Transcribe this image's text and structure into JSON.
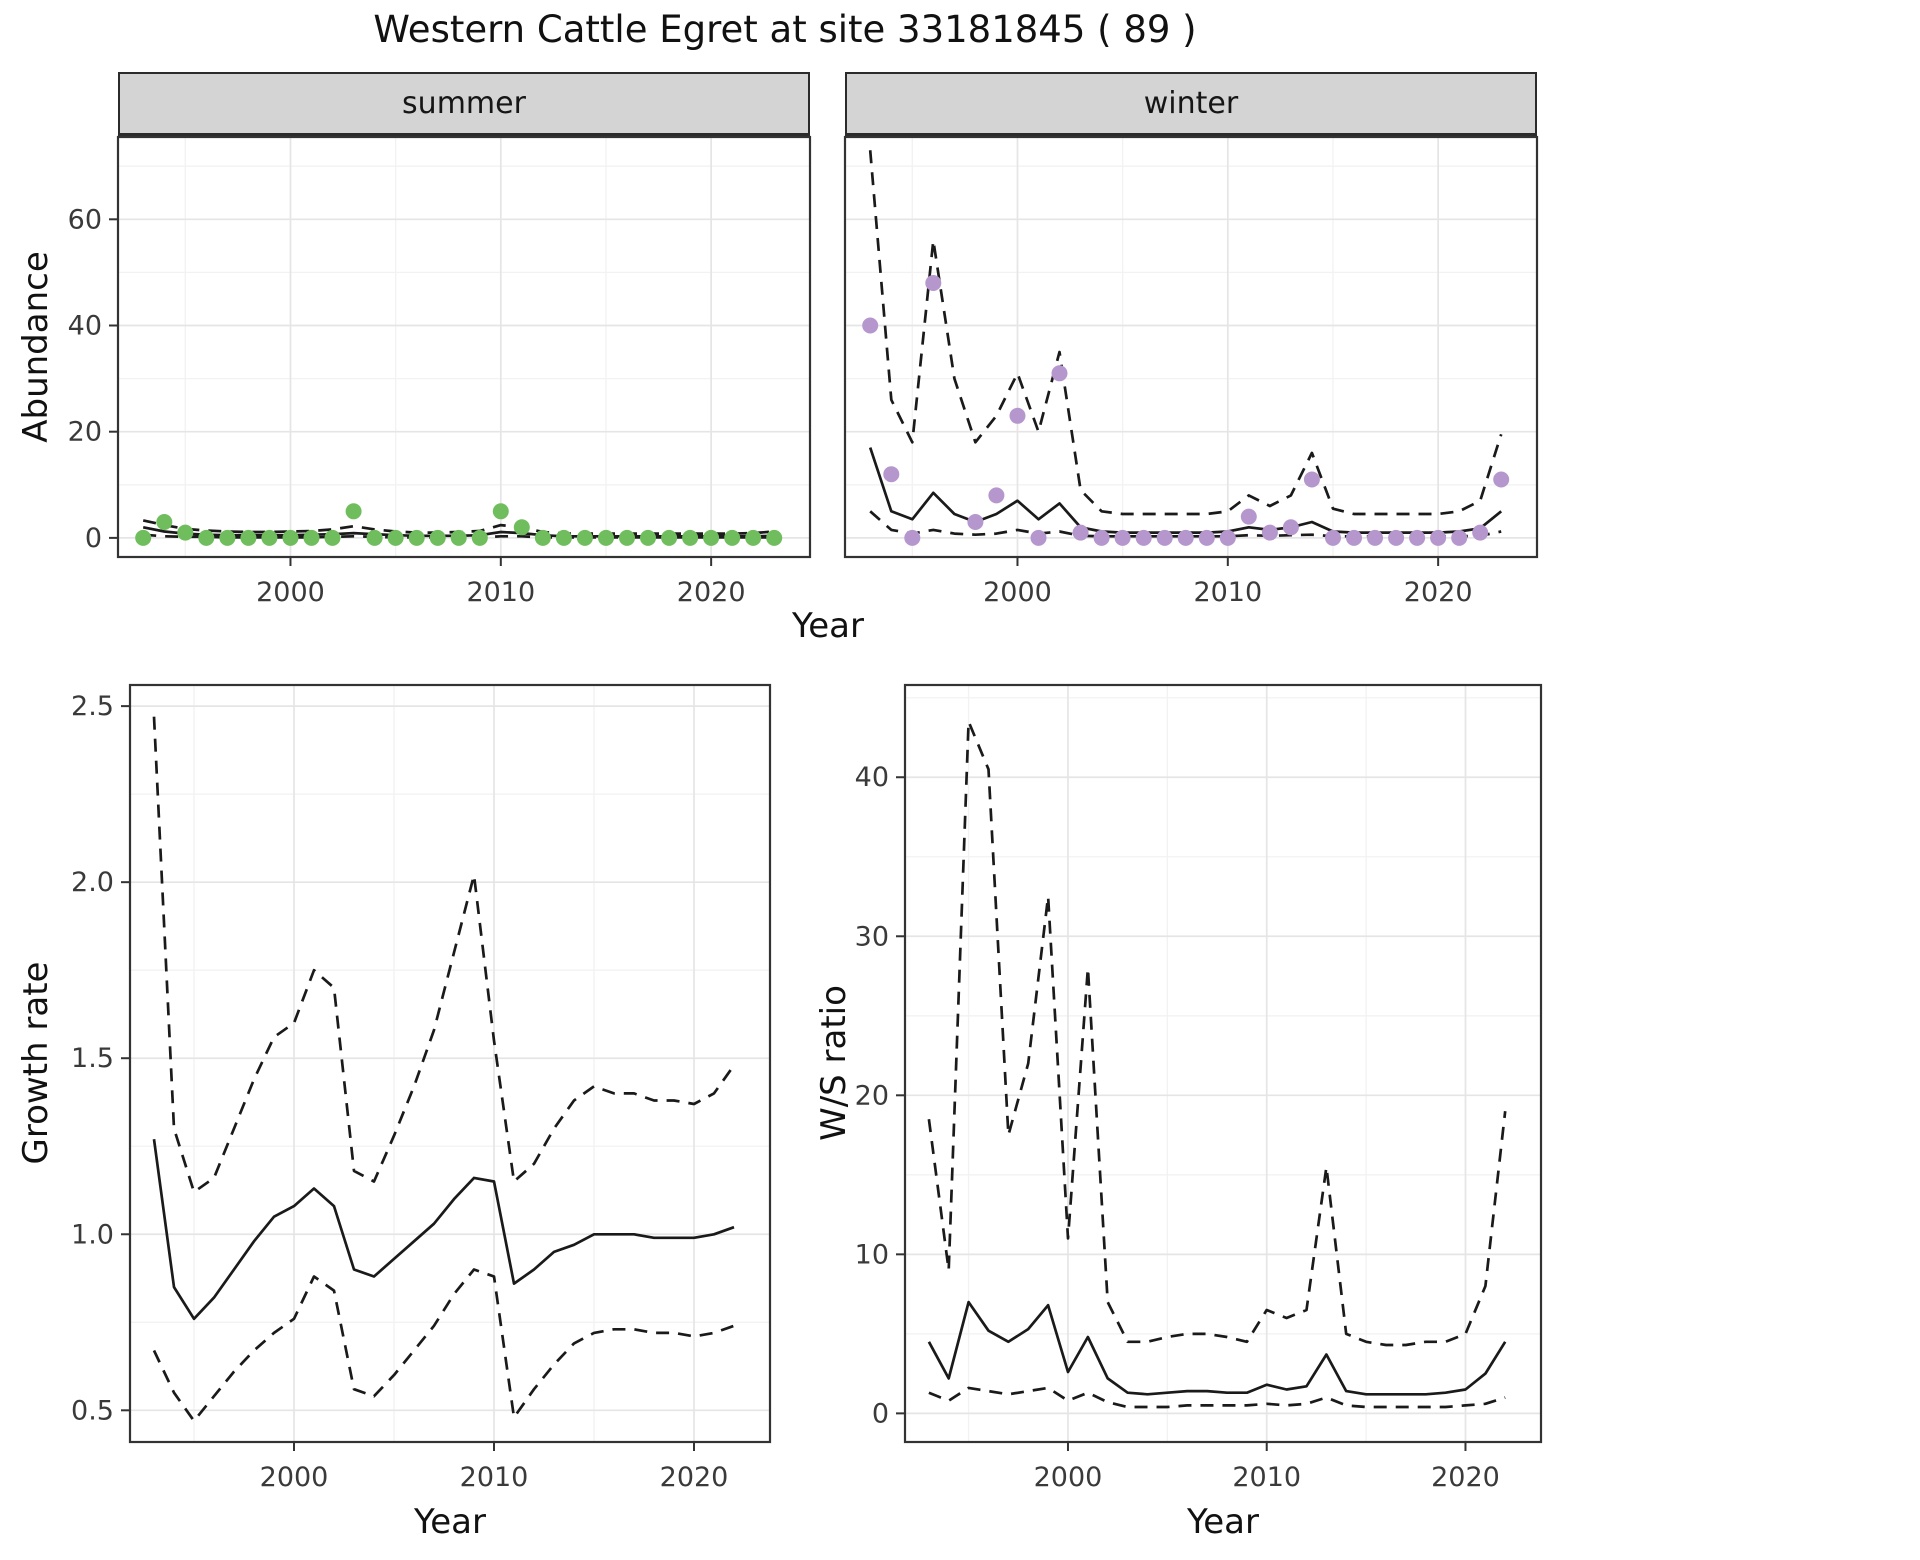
{
  "title": "Western Cattle Egret at site 33181845 ( 89 )",
  "colors": {
    "summer_points": "#6fbd5c",
    "winter_points": "#b597cd",
    "fit_line": "#1a1a1a",
    "ci_line": "#1a1a1a",
    "strip_background": "#d4d4d4",
    "panel_border": "#333333",
    "major_grid": "#e5e5e5",
    "minor_grid": "#f2f2f2"
  },
  "chart_data": [
    {
      "type": "line",
      "subtype": "points-with-fit-and-dashed-confidence-bands",
      "id": "abundance-by-season",
      "ylabel": "Abundance",
      "xlabel": "Year",
      "grid": "on",
      "legend": "none",
      "xlim": [
        1991.8,
        2024.7
      ],
      "ylim": [
        -3.6,
        75.5
      ],
      "xticks": [
        2000,
        2010,
        2020
      ],
      "yticks": [
        0,
        20,
        40,
        60
      ],
      "years": [
        1993,
        1994,
        1995,
        1996,
        1997,
        1998,
        1999,
        2000,
        2001,
        2002,
        2003,
        2004,
        2005,
        2006,
        2007,
        2008,
        2009,
        2010,
        2011,
        2012,
        2013,
        2014,
        2015,
        2016,
        2017,
        2018,
        2019,
        2020,
        2021,
        2022,
        2023
      ],
      "facets": [
        {
          "label": "summer",
          "point_color": "#6fbd5c",
          "observed": [
            0,
            3,
            1,
            0,
            0,
            0,
            0,
            0,
            0,
            0,
            5,
            0,
            0,
            0,
            0,
            0,
            0,
            5,
            2,
            0,
            0,
            0,
            0,
            0,
            0,
            0,
            0,
            0,
            0,
            0,
            0
          ],
          "fit": [
            2.0,
            1.2,
            0.8,
            0.6,
            0.5,
            0.5,
            0.5,
            0.5,
            0.6,
            0.7,
            0.9,
            0.7,
            0.5,
            0.4,
            0.4,
            0.4,
            0.5,
            1.1,
            0.9,
            0.5,
            0.3,
            0.3,
            0.3,
            0.3,
            0.3,
            0.3,
            0.3,
            0.3,
            0.3,
            0.3,
            0.4
          ],
          "ci_upper": [
            3.3,
            2.4,
            1.7,
            1.4,
            1.2,
            1.1,
            1.1,
            1.2,
            1.3,
            1.6,
            2.2,
            1.6,
            1.2,
            1.0,
            1.0,
            1.1,
            1.3,
            2.4,
            2.0,
            1.1,
            0.8,
            0.8,
            0.8,
            0.8,
            0.8,
            0.8,
            0.8,
            0.8,
            0.8,
            0.9,
            1.2
          ],
          "ci_lower": [
            0.6,
            0.3,
            0.2,
            0.2,
            0.1,
            0.1,
            0.1,
            0.1,
            0.1,
            0.2,
            0.3,
            0.2,
            0.1,
            0.1,
            0.1,
            0.1,
            0.1,
            0.3,
            0.3,
            0.1,
            0.1,
            0.1,
            0.1,
            0.1,
            0.1,
            0.1,
            0.1,
            0.1,
            0.1,
            0.1,
            0.1
          ]
        },
        {
          "label": "winter",
          "point_color": "#b597cd",
          "observed": [
            40,
            12,
            0,
            48,
            null,
            3,
            8,
            23,
            0,
            31,
            1,
            0,
            0,
            0,
            0,
            0,
            0,
            0,
            4,
            1,
            2,
            11,
            0,
            0,
            0,
            0,
            0,
            0,
            0,
            1,
            11
          ],
          "fit": [
            17,
            5,
            3.5,
            8.5,
            4.5,
            3,
            4.5,
            7,
            3.5,
            6.5,
            2,
            1.2,
            1,
            1,
            1,
            1,
            1,
            1.2,
            2,
            1.5,
            2,
            3,
            1.2,
            1,
            1,
            1,
            1,
            1,
            1.2,
            1.8,
            5
          ],
          "ci_upper": [
            73,
            26,
            18,
            56,
            30,
            18,
            23,
            31,
            20,
            35,
            9,
            5,
            4.5,
            4.5,
            4.5,
            4.5,
            4.5,
            5,
            8,
            6,
            8,
            16,
            5.5,
            4.5,
            4.5,
            4.5,
            4.5,
            4.5,
            5,
            7,
            19.5
          ],
          "ci_lower": [
            5,
            1.5,
            0.8,
            1.5,
            0.8,
            0.6,
            0.8,
            1.5,
            0.8,
            1.2,
            0.4,
            0.3,
            0.3,
            0.3,
            0.3,
            0.3,
            0.3,
            0.3,
            0.5,
            0.4,
            0.5,
            0.6,
            0.3,
            0.3,
            0.3,
            0.3,
            0.3,
            0.3,
            0.3,
            0.4,
            1.2
          ]
        }
      ]
    },
    {
      "type": "line",
      "subtype": "fit-with-dashed-confidence-bands",
      "id": "growth-rate",
      "ylabel": "Growth rate",
      "xlabel": "Year",
      "grid": "on",
      "legend": "none",
      "xlim": [
        1991.8,
        2023.8
      ],
      "ylim": [
        0.41,
        2.56
      ],
      "xticks": [
        2000,
        2010,
        2020
      ],
      "yticks": [
        0.5,
        1.0,
        1.5,
        2.0,
        2.5
      ],
      "ytick_labels": [
        "0.5",
        "1.0",
        "1.5",
        "2.0",
        "2.5"
      ],
      "years": [
        1993,
        1994,
        1995,
        1996,
        1997,
        1998,
        1999,
        2000,
        2001,
        2002,
        2003,
        2004,
        2005,
        2006,
        2007,
        2008,
        2009,
        2010,
        2011,
        2012,
        2013,
        2014,
        2015,
        2016,
        2017,
        2018,
        2019,
        2020,
        2021,
        2022
      ],
      "fit": [
        1.27,
        0.85,
        0.76,
        0.82,
        0.9,
        0.98,
        1.05,
        1.08,
        1.13,
        1.08,
        0.9,
        0.88,
        0.93,
        0.98,
        1.03,
        1.1,
        1.16,
        1.15,
        0.86,
        0.9,
        0.95,
        0.97,
        1.0,
        1.0,
        1.0,
        0.99,
        0.99,
        0.99,
        1.0,
        1.02
      ],
      "ci_upper": [
        2.47,
        1.3,
        1.12,
        1.16,
        1.3,
        1.44,
        1.56,
        1.6,
        1.75,
        1.7,
        1.18,
        1.15,
        1.28,
        1.42,
        1.58,
        1.8,
        2.02,
        1.55,
        1.15,
        1.2,
        1.3,
        1.38,
        1.42,
        1.4,
        1.4,
        1.38,
        1.38,
        1.37,
        1.4,
        1.48
      ],
      "ci_lower": [
        0.67,
        0.55,
        0.47,
        0.54,
        0.61,
        0.67,
        0.72,
        0.76,
        0.88,
        0.84,
        0.56,
        0.54,
        0.6,
        0.67,
        0.74,
        0.83,
        0.9,
        0.88,
        0.48,
        0.56,
        0.63,
        0.69,
        0.72,
        0.73,
        0.73,
        0.72,
        0.72,
        0.71,
        0.72,
        0.74
      ]
    },
    {
      "type": "line",
      "subtype": "fit-with-dashed-confidence-bands",
      "id": "ws-ratio",
      "ylabel": "W/S ratio",
      "xlabel": "Year",
      "grid": "on",
      "legend": "none",
      "xlim": [
        1991.8,
        2023.8
      ],
      "ylim": [
        -1.8,
        45.8
      ],
      "xticks": [
        2000,
        2010,
        2020
      ],
      "yticks": [
        0,
        10,
        20,
        30,
        40
      ],
      "years": [
        1993,
        1994,
        1995,
        1996,
        1997,
        1998,
        1999,
        2000,
        2001,
        2002,
        2003,
        2004,
        2005,
        2006,
        2007,
        2008,
        2009,
        2010,
        2011,
        2012,
        2013,
        2014,
        2015,
        2016,
        2017,
        2018,
        2019,
        2020,
        2021,
        2022
      ],
      "fit": [
        4.5,
        2.2,
        7.0,
        5.2,
        4.5,
        5.3,
        6.8,
        2.6,
        4.8,
        2.2,
        1.3,
        1.2,
        1.3,
        1.4,
        1.4,
        1.3,
        1.3,
        1.8,
        1.5,
        1.7,
        3.7,
        1.4,
        1.2,
        1.2,
        1.2,
        1.2,
        1.3,
        1.5,
        2.5,
        4.5
      ],
      "ci_upper": [
        18.5,
        9.0,
        43.5,
        40.5,
        17.5,
        22.0,
        32.5,
        11.0,
        28.0,
        7.0,
        4.5,
        4.5,
        4.8,
        5.0,
        5.0,
        4.8,
        4.5,
        6.5,
        6.0,
        6.5,
        15.5,
        5.0,
        4.5,
        4.3,
        4.3,
        4.5,
        4.5,
        5.0,
        8.0,
        19.0
      ],
      "ci_lower": [
        1.3,
        0.8,
        1.6,
        1.4,
        1.2,
        1.4,
        1.6,
        0.8,
        1.3,
        0.7,
        0.4,
        0.4,
        0.4,
        0.5,
        0.5,
        0.5,
        0.5,
        0.6,
        0.5,
        0.6,
        1.0,
        0.5,
        0.4,
        0.4,
        0.4,
        0.4,
        0.4,
        0.5,
        0.6,
        1.0
      ]
    }
  ]
}
